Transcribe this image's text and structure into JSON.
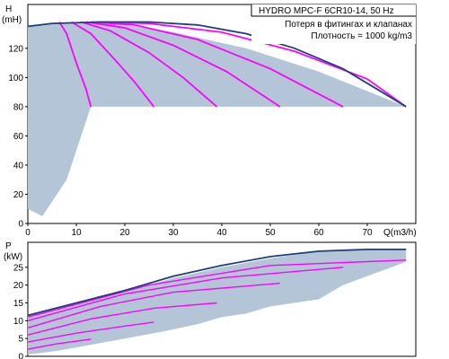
{
  "colors": {
    "area_fill": "#b3c5d6",
    "envelope_line": "#1f3f7a",
    "stage_curve": "#ff00ff",
    "frame": "#000000"
  },
  "title_box": {
    "line1": "HYDRO MPC-F 6CR10-14, 50 Hz",
    "line2": "Потеря в фитингах и клапанах",
    "line3": "Плотность = 1000 kg/m3"
  },
  "chart_data": [
    {
      "type": "line",
      "name": "head",
      "ylabel_line1": "H",
      "ylabel_line2": "(mH)",
      "xlabel": "Q(m3/h)",
      "xlim": [
        0,
        80
      ],
      "ylim": [
        0,
        150
      ],
      "xticks": [
        0,
        10,
        20,
        30,
        40,
        50,
        60,
        70
      ],
      "yticks": [
        0,
        20,
        40,
        60,
        80,
        100,
        120
      ],
      "grid": false,
      "operating_area": [
        [
          0,
          10
        ],
        [
          3,
          5
        ],
        [
          5,
          15
        ],
        [
          8,
          30
        ],
        [
          10,
          50
        ],
        [
          12,
          70
        ],
        [
          13,
          80
        ],
        [
          78,
          80
        ],
        [
          60,
          104
        ],
        [
          45,
          120
        ],
        [
          30,
          131
        ],
        [
          20,
          136
        ],
        [
          15,
          137
        ],
        [
          5,
          137
        ],
        [
          0,
          135
        ]
      ],
      "envelope": [
        [
          0,
          135
        ],
        [
          5,
          137
        ],
        [
          15,
          138
        ],
        [
          25,
          138
        ],
        [
          35,
          136
        ],
        [
          45,
          130
        ],
        [
          55,
          120
        ],
        [
          65,
          106
        ],
        [
          72,
          92
        ],
        [
          78,
          80
        ]
      ],
      "series": [
        {
          "values": [
            [
              6.5,
              138
            ],
            [
              8,
              130
            ],
            [
              10,
              110
            ],
            [
              12,
              92
            ],
            [
              13,
              80
            ]
          ]
        },
        {
          "values": [
            [
              9,
              138
            ],
            [
              13,
              130
            ],
            [
              18,
              112
            ],
            [
              22,
              97
            ],
            [
              26,
              80
            ]
          ]
        },
        {
          "values": [
            [
              11,
              138
            ],
            [
              17,
              132
            ],
            [
              25,
              117
            ],
            [
              32,
              100
            ],
            [
              39,
              80
            ]
          ]
        },
        {
          "values": [
            [
              12,
              138
            ],
            [
              20,
              134
            ],
            [
              30,
              122
            ],
            [
              41,
              104
            ],
            [
              52,
              80
            ]
          ]
        },
        {
          "values": [
            [
              13,
              138
            ],
            [
              22,
              136
            ],
            [
              35,
              126
            ],
            [
              50,
              106
            ],
            [
              65,
              80
            ]
          ]
        },
        {
          "values": [
            [
              14,
              138
            ],
            [
              25,
              137
            ],
            [
              40,
              131
            ],
            [
              55,
              118
            ],
            [
              70,
              99
            ],
            [
              78,
              80
            ]
          ]
        }
      ]
    },
    {
      "type": "line",
      "name": "power",
      "ylabel_line1": "P",
      "ylabel_line2": "(kW)",
      "xlim": [
        0,
        80
      ],
      "ylim": [
        0,
        32
      ],
      "yticks": [
        0,
        5,
        10,
        15,
        20,
        25
      ],
      "grid": false,
      "operating_area": [
        [
          0,
          11.5
        ],
        [
          10,
          15
        ],
        [
          20,
          18
        ],
        [
          30,
          22
        ],
        [
          40,
          25
        ],
        [
          50,
          27.5
        ],
        [
          60,
          29.5
        ],
        [
          70,
          30
        ],
        [
          78,
          30
        ],
        [
          78,
          26.5
        ],
        [
          65,
          20
        ],
        [
          60,
          16
        ],
        [
          50,
          14
        ],
        [
          45,
          12
        ],
        [
          40,
          11
        ],
        [
          35,
          9
        ],
        [
          28,
          7
        ],
        [
          20,
          5
        ],
        [
          12,
          3
        ],
        [
          6,
          1.5
        ],
        [
          0,
          0.5
        ]
      ],
      "envelope": [
        [
          0,
          11.5
        ],
        [
          10,
          15
        ],
        [
          20,
          18.5
        ],
        [
          30,
          22.5
        ],
        [
          40,
          25.5
        ],
        [
          50,
          28
        ],
        [
          60,
          29.5
        ],
        [
          70,
          30
        ],
        [
          78,
          30
        ]
      ],
      "series": [
        {
          "values": [
            [
              0,
              2
            ],
            [
              6,
              3.5
            ],
            [
              13,
              4.8
            ]
          ]
        },
        {
          "values": [
            [
              0,
              4
            ],
            [
              10,
              6.5
            ],
            [
              20,
              8.5
            ],
            [
              26,
              9.6
            ]
          ]
        },
        {
          "values": [
            [
              0,
              6
            ],
            [
              13,
              10.5
            ],
            [
              26,
              13.5
            ],
            [
              39,
              15
            ]
          ]
        },
        {
          "values": [
            [
              0,
              8
            ],
            [
              15,
              14
            ],
            [
              30,
              18
            ],
            [
              52,
              20.5
            ]
          ]
        },
        {
          "values": [
            [
              0,
              10
            ],
            [
              20,
              17.5
            ],
            [
              40,
              22
            ],
            [
              65,
              25
            ]
          ]
        },
        {
          "values": [
            [
              0,
              11
            ],
            [
              25,
              20
            ],
            [
              50,
              25.5
            ],
            [
              78,
              27
            ]
          ]
        }
      ]
    }
  ]
}
